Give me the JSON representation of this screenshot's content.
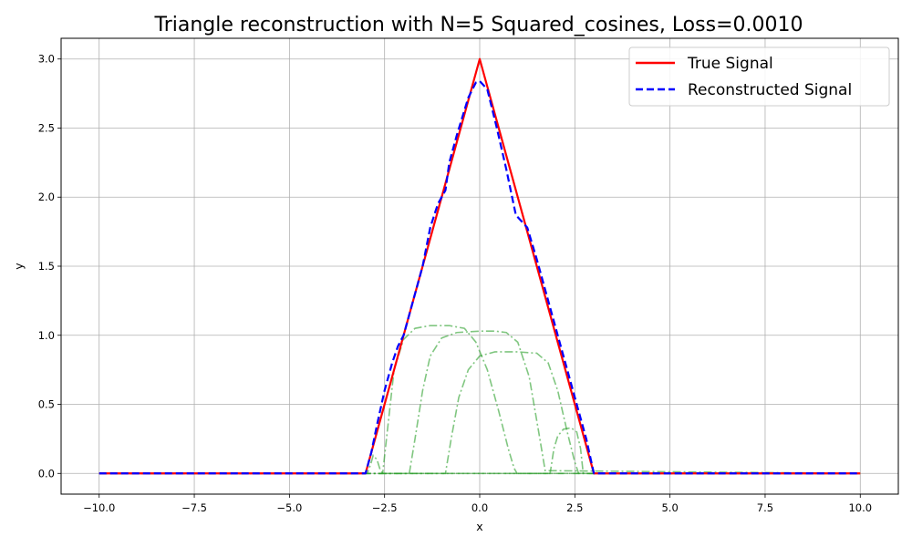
{
  "chart_data": {
    "type": "line",
    "title": "Triangle reconstruction with N=5 Squared_cosines, Loss=0.0010",
    "xlabel": "x",
    "ylabel": "y",
    "xlim": [
      -11,
      11
    ],
    "ylim": [
      -0.15,
      3.15
    ],
    "xticks": [
      -10,
      -7.5,
      -5,
      -2.5,
      0,
      2.5,
      5,
      7.5,
      10
    ],
    "xtick_labels": [
      "−10.0",
      "−7.5",
      "−5.0",
      "−2.5",
      "0.0",
      "2.5",
      "5.0",
      "7.5",
      "10.0"
    ],
    "yticks": [
      0,
      0.5,
      1,
      1.5,
      2,
      2.5,
      3
    ],
    "ytick_labels": [
      "0.0",
      "0.5",
      "1.0",
      "1.5",
      "2.0",
      "2.5",
      "3.0"
    ],
    "grid": true,
    "legend_position": "top-right",
    "series": [
      {
        "name": "True Signal",
        "color": "#ff0000",
        "style": "solid",
        "x": [
          -10,
          -3,
          0,
          3,
          10
        ],
        "y": [
          0,
          0,
          3.0,
          0,
          0
        ]
      },
      {
        "name": "Reconstructed Signal",
        "color": "#0000ff",
        "style": "dashed",
        "x": [
          -10,
          -3.0,
          -2.85,
          -2.7,
          -2.5,
          -2.3,
          -2.15,
          -2.0,
          -1.85,
          -1.5,
          -1.3,
          -1.1,
          -0.9,
          -0.8,
          -0.6,
          -0.3,
          -0.1,
          0.0,
          0.2,
          0.45,
          0.7,
          0.95,
          1.25,
          1.5,
          1.85,
          2.1,
          2.35,
          2.6,
          2.8,
          3.0,
          10
        ],
        "y": [
          0,
          0,
          0.15,
          0.35,
          0.6,
          0.8,
          0.92,
          1.0,
          1.15,
          1.5,
          1.78,
          1.95,
          2.05,
          2.25,
          2.45,
          2.72,
          2.83,
          2.84,
          2.78,
          2.5,
          2.2,
          1.87,
          1.78,
          1.55,
          1.2,
          0.95,
          0.7,
          0.45,
          0.25,
          0.0,
          0
        ]
      }
    ],
    "components": {
      "color": "#2ca02c",
      "style": "dashdot",
      "curves": [
        {
          "x": [
            -10,
            -2.95,
            -2.85,
            -2.8,
            -2.7,
            -2.62,
            -2.55,
            10
          ],
          "y": [
            0,
            0,
            0.08,
            0.13,
            0.1,
            0.03,
            0,
            0
          ]
        },
        {
          "x": [
            -10,
            -2.55,
            -2.45,
            -2.25,
            -2.0,
            -1.7,
            -1.3,
            -0.8,
            -0.4,
            -0.1,
            0.2,
            0.5,
            0.75,
            0.9,
            0.98,
            10
          ],
          "y": [
            0,
            0,
            0.25,
            0.75,
            0.97,
            1.05,
            1.07,
            1.07,
            1.05,
            0.95,
            0.75,
            0.45,
            0.18,
            0.04,
            0,
            0
          ]
        },
        {
          "x": [
            -10,
            -1.85,
            -1.7,
            -1.5,
            -1.3,
            -1.0,
            -0.6,
            0.0,
            0.4,
            0.7,
            1.0,
            1.3,
            1.55,
            1.72,
            10
          ],
          "y": [
            0,
            0,
            0.25,
            0.6,
            0.85,
            0.98,
            1.02,
            1.03,
            1.03,
            1.02,
            0.95,
            0.7,
            0.3,
            0.02,
            0
          ]
        },
        {
          "x": [
            -10,
            -0.9,
            -0.75,
            -0.55,
            -0.3,
            0.0,
            0.4,
            1.0,
            1.5,
            1.8,
            2.05,
            2.3,
            2.5,
            2.6,
            10
          ],
          "y": [
            0,
            0,
            0.25,
            0.55,
            0.75,
            0.85,
            0.88,
            0.88,
            0.87,
            0.8,
            0.6,
            0.3,
            0.08,
            0,
            0
          ]
        },
        {
          "x": [
            -10,
            1.85,
            1.95,
            2.05,
            2.2,
            2.4,
            2.55,
            2.65,
            2.72,
            10
          ],
          "y": [
            0,
            0,
            0.18,
            0.27,
            0.32,
            0.33,
            0.3,
            0.18,
            0,
            0
          ]
        }
      ]
    }
  }
}
